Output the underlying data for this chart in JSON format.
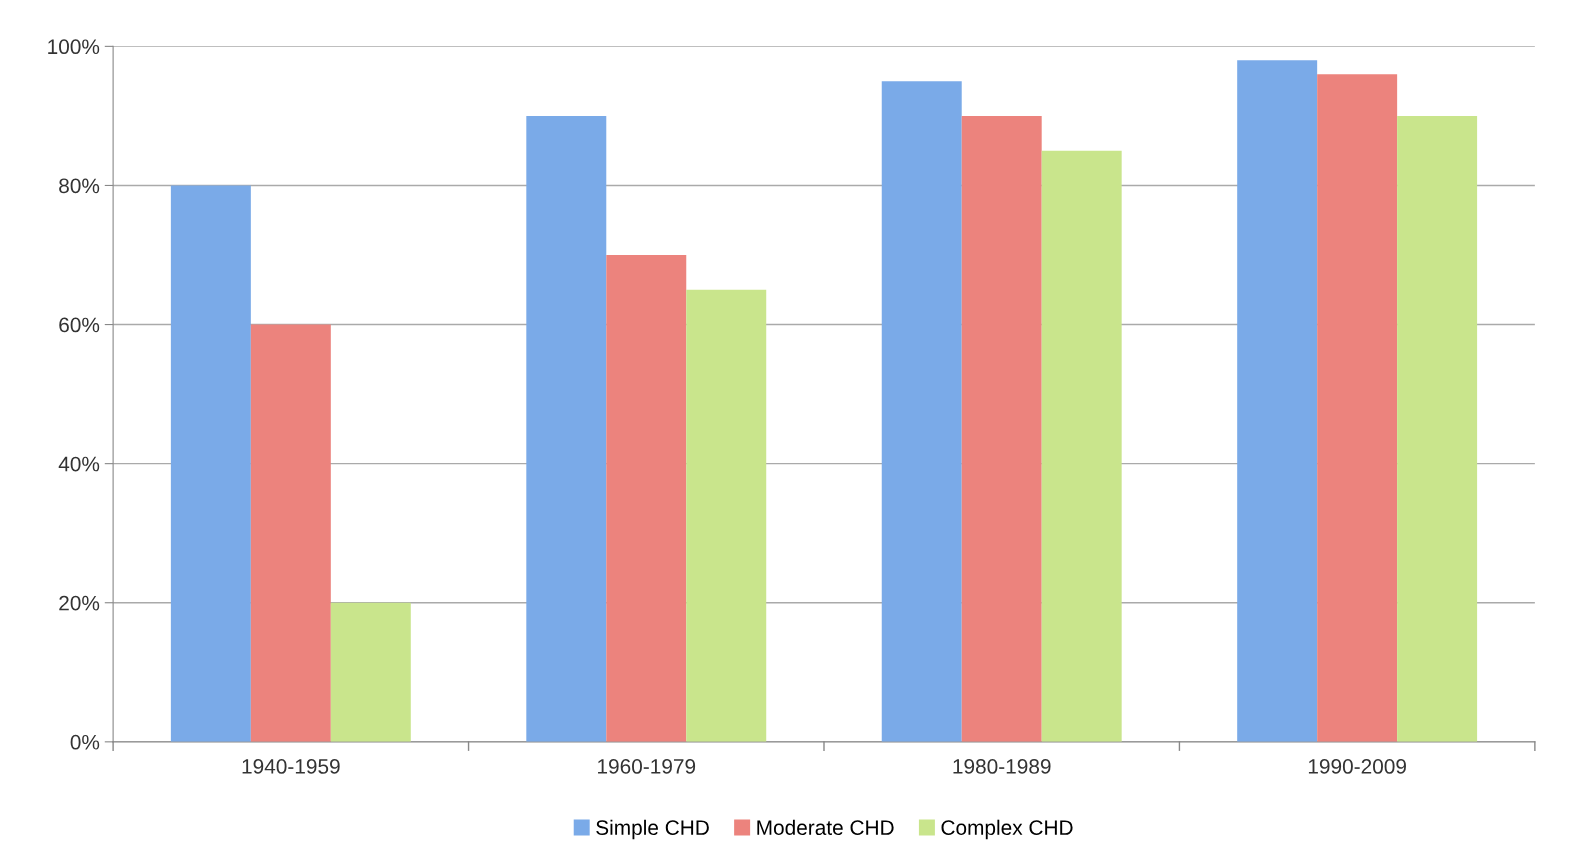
{
  "chart_data": {
    "type": "bar",
    "categories": [
      "1940-1959",
      "1960-1979",
      "1980-1989",
      "1990-2009"
    ],
    "series": [
      {
        "name": "Simple CHD",
        "color": "#7aaae8",
        "values": [
          80,
          90,
          95,
          98
        ]
      },
      {
        "name": "Moderate CHD",
        "color": "#ec837d",
        "values": [
          60,
          70,
          90,
          96
        ]
      },
      {
        "name": "Complex CHD",
        "color": "#c9e58c",
        "values": [
          20,
          65,
          85,
          90
        ]
      }
    ],
    "ylim": [
      0,
      100
    ],
    "yticks": [
      {
        "value": 0,
        "label": "0%"
      },
      {
        "value": 20,
        "label": "20%"
      },
      {
        "value": 40,
        "label": "40%"
      },
      {
        "value": 60,
        "label": "60%"
      },
      {
        "value": 80,
        "label": "80%"
      },
      {
        "value": 100,
        "label": "100%"
      }
    ],
    "grid": "y",
    "legend": "bottom"
  }
}
